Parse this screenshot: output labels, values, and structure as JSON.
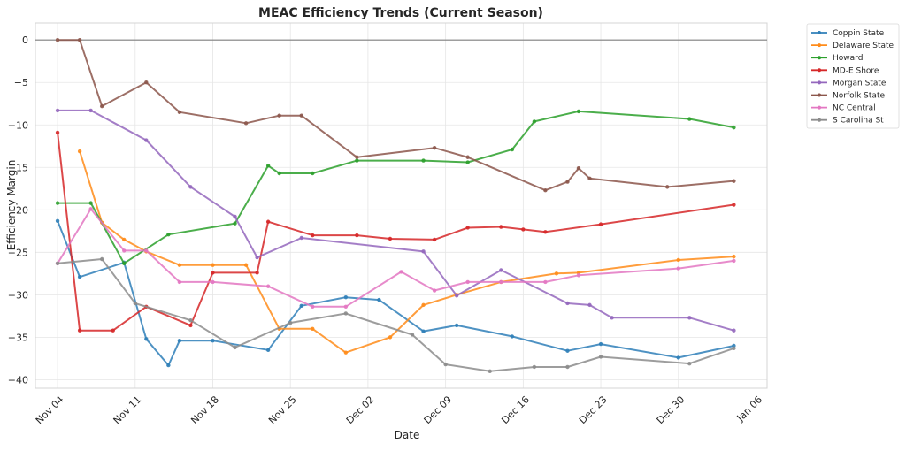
{
  "chart_data": {
    "type": "line",
    "title": "MEAC Efficiency Trends (Current Season)",
    "xlabel": "Date",
    "ylabel": "Efficiency Margin",
    "x_ticks": [
      "Nov 04",
      "Nov 11",
      "Nov 18",
      "Nov 25",
      "Dec 02",
      "Dec 09",
      "Dec 16",
      "Dec 23",
      "Dec 30",
      "Jan 06"
    ],
    "x_tick_dates": [
      "2024-11-04",
      "2024-11-11",
      "2024-11-18",
      "2024-11-25",
      "2024-12-02",
      "2024-12-09",
      "2024-12-16",
      "2024-12-23",
      "2024-12-30",
      "2025-01-06"
    ],
    "xlim": [
      "2024-11-02",
      "2025-01-07"
    ],
    "y_ticks": [
      "0",
      "−5",
      "−10",
      "−15",
      "−20",
      "−25",
      "−30",
      "−35",
      "−40"
    ],
    "ylim": [
      -41,
      2
    ],
    "grid": true,
    "reference_line": 0,
    "legend_position": "outside-right-top",
    "series": [
      {
        "name": "Coppin State",
        "color": "#2f7fb8",
        "points": [
          [
            "2024-11-04",
            -21.3
          ],
          [
            "2024-11-06",
            -27.9
          ],
          [
            "2024-11-10",
            -26.2
          ],
          [
            "2024-11-12",
            -35.2
          ],
          [
            "2024-11-14",
            -38.3
          ],
          [
            "2024-11-15",
            -35.4
          ],
          [
            "2024-11-18",
            -35.4
          ],
          [
            "2024-11-23",
            -36.5
          ],
          [
            "2024-11-26",
            -31.3
          ],
          [
            "2024-11-30",
            -30.3
          ],
          [
            "2024-12-03",
            -30.6
          ],
          [
            "2024-12-07",
            -34.3
          ],
          [
            "2024-12-10",
            -33.6
          ],
          [
            "2024-12-15",
            -34.9
          ],
          [
            "2024-12-20",
            -36.6
          ],
          [
            "2024-12-23",
            -35.8
          ],
          [
            "2024-12-30",
            -37.4
          ],
          [
            "2025-01-04",
            -36.0
          ]
        ]
      },
      {
        "name": "Delaware State",
        "color": "#ff8c1a",
        "points": [
          [
            "2024-11-06",
            -13.1
          ],
          [
            "2024-11-08",
            -21.5
          ],
          [
            "2024-11-10",
            -23.5
          ],
          [
            "2024-11-12",
            -24.9
          ],
          [
            "2024-11-15",
            -26.5
          ],
          [
            "2024-11-18",
            -26.5
          ],
          [
            "2024-11-21",
            -26.5
          ],
          [
            "2024-11-24",
            -34.0
          ],
          [
            "2024-11-27",
            -34.0
          ],
          [
            "2024-11-30",
            -36.8
          ],
          [
            "2024-12-04",
            -35.0
          ],
          [
            "2024-12-07",
            -31.2
          ],
          [
            "2024-12-10",
            -30.0
          ],
          [
            "2024-12-14",
            -28.5
          ],
          [
            "2024-12-19",
            -27.5
          ],
          [
            "2024-12-21",
            -27.4
          ],
          [
            "2024-12-30",
            -25.9
          ],
          [
            "2025-01-04",
            -25.5
          ]
        ]
      },
      {
        "name": "Howard",
        "color": "#2ca02c",
        "points": [
          [
            "2024-11-04",
            -19.2
          ],
          [
            "2024-11-07",
            -19.2
          ],
          [
            "2024-11-10",
            -26.3
          ],
          [
            "2024-11-14",
            -22.9
          ],
          [
            "2024-11-20",
            -21.6
          ],
          [
            "2024-11-23",
            -14.8
          ],
          [
            "2024-11-24",
            -15.7
          ],
          [
            "2024-11-27",
            -15.7
          ],
          [
            "2024-12-01",
            -14.2
          ],
          [
            "2024-12-07",
            -14.2
          ],
          [
            "2024-12-11",
            -14.4
          ],
          [
            "2024-12-15",
            -12.9
          ],
          [
            "2024-12-17",
            -9.6
          ],
          [
            "2024-12-21",
            -8.4
          ],
          [
            "2024-12-31",
            -9.3
          ],
          [
            "2025-01-04",
            -10.3
          ]
        ]
      },
      {
        "name": "MD-E Shore",
        "color": "#d62728",
        "points": [
          [
            "2024-11-04",
            -10.9
          ],
          [
            "2024-11-06",
            -34.2
          ],
          [
            "2024-11-09",
            -34.2
          ],
          [
            "2024-11-12",
            -31.4
          ],
          [
            "2024-11-16",
            -33.6
          ],
          [
            "2024-11-18",
            -27.4
          ],
          [
            "2024-11-22",
            -27.4
          ],
          [
            "2024-11-23",
            -21.4
          ],
          [
            "2024-11-27",
            -23.0
          ],
          [
            "2024-12-01",
            -23.0
          ],
          [
            "2024-12-04",
            -23.4
          ],
          [
            "2024-12-08",
            -23.5
          ],
          [
            "2024-12-11",
            -22.1
          ],
          [
            "2024-12-14",
            -22.0
          ],
          [
            "2024-12-16",
            -22.3
          ],
          [
            "2024-12-18",
            -22.6
          ],
          [
            "2024-12-23",
            -21.7
          ],
          [
            "2025-01-04",
            -19.4
          ]
        ]
      },
      {
        "name": "Morgan State",
        "color": "#9467bd",
        "points": [
          [
            "2024-11-04",
            -8.3
          ],
          [
            "2024-11-07",
            -8.3
          ],
          [
            "2024-11-12",
            -11.8
          ],
          [
            "2024-11-16",
            -17.3
          ],
          [
            "2024-11-20",
            -20.8
          ],
          [
            "2024-11-22",
            -25.6
          ],
          [
            "2024-11-26",
            -23.3
          ],
          [
            "2024-12-07",
            -24.9
          ],
          [
            "2024-12-10",
            -30.1
          ],
          [
            "2024-12-14",
            -27.1
          ],
          [
            "2024-12-20",
            -31.0
          ],
          [
            "2024-12-22",
            -31.2
          ],
          [
            "2024-12-24",
            -32.7
          ],
          [
            "2024-12-31",
            -32.7
          ],
          [
            "2025-01-04",
            -34.2
          ]
        ]
      },
      {
        "name": "Norfolk State",
        "color": "#8c564b",
        "points": [
          [
            "2024-11-04",
            0.0
          ],
          [
            "2024-11-06",
            0.0
          ],
          [
            "2024-11-08",
            -7.8
          ],
          [
            "2024-11-12",
            -5.0
          ],
          [
            "2024-11-15",
            -8.5
          ],
          [
            "2024-11-21",
            -9.8
          ],
          [
            "2024-11-24",
            -8.9
          ],
          [
            "2024-11-26",
            -8.9
          ],
          [
            "2024-12-01",
            -13.8
          ],
          [
            "2024-12-08",
            -12.7
          ],
          [
            "2024-12-11",
            -13.8
          ],
          [
            "2024-12-18",
            -17.7
          ],
          [
            "2024-12-20",
            -16.7
          ],
          [
            "2024-12-21",
            -15.1
          ],
          [
            "2024-12-22",
            -16.3
          ],
          [
            "2024-12-29",
            -17.3
          ],
          [
            "2025-01-04",
            -16.6
          ]
        ]
      },
      {
        "name": "NC Central",
        "color": "#e377c2",
        "points": [
          [
            "2024-11-04",
            -26.3
          ],
          [
            "2024-11-07",
            -19.9
          ],
          [
            "2024-11-10",
            -24.8
          ],
          [
            "2024-11-12",
            -24.8
          ],
          [
            "2024-11-15",
            -28.5
          ],
          [
            "2024-11-18",
            -28.5
          ],
          [
            "2024-11-23",
            -29.0
          ],
          [
            "2024-11-27",
            -31.4
          ],
          [
            "2024-11-30",
            -31.4
          ],
          [
            "2024-12-05",
            -27.3
          ],
          [
            "2024-12-08",
            -29.5
          ],
          [
            "2024-12-11",
            -28.5
          ],
          [
            "2024-12-14",
            -28.5
          ],
          [
            "2024-12-18",
            -28.5
          ],
          [
            "2024-12-21",
            -27.7
          ],
          [
            "2024-12-30",
            -26.9
          ],
          [
            "2025-01-04",
            -26.0
          ]
        ]
      },
      {
        "name": "S Carolina St",
        "color": "#8c8c8c",
        "points": [
          [
            "2024-11-04",
            -26.3
          ],
          [
            "2024-11-08",
            -25.8
          ],
          [
            "2024-11-11",
            -31.0
          ],
          [
            "2024-11-16",
            -33.0
          ],
          [
            "2024-11-20",
            -36.2
          ],
          [
            "2024-11-25",
            -33.3
          ],
          [
            "2024-11-30",
            -32.2
          ],
          [
            "2024-12-06",
            -34.7
          ],
          [
            "2024-12-09",
            -38.2
          ],
          [
            "2024-12-13",
            -39.0
          ],
          [
            "2024-12-17",
            -38.5
          ],
          [
            "2024-12-20",
            -38.5
          ],
          [
            "2024-12-23",
            -37.3
          ],
          [
            "2024-12-31",
            -38.1
          ],
          [
            "2025-01-04",
            -36.3
          ]
        ]
      }
    ]
  }
}
